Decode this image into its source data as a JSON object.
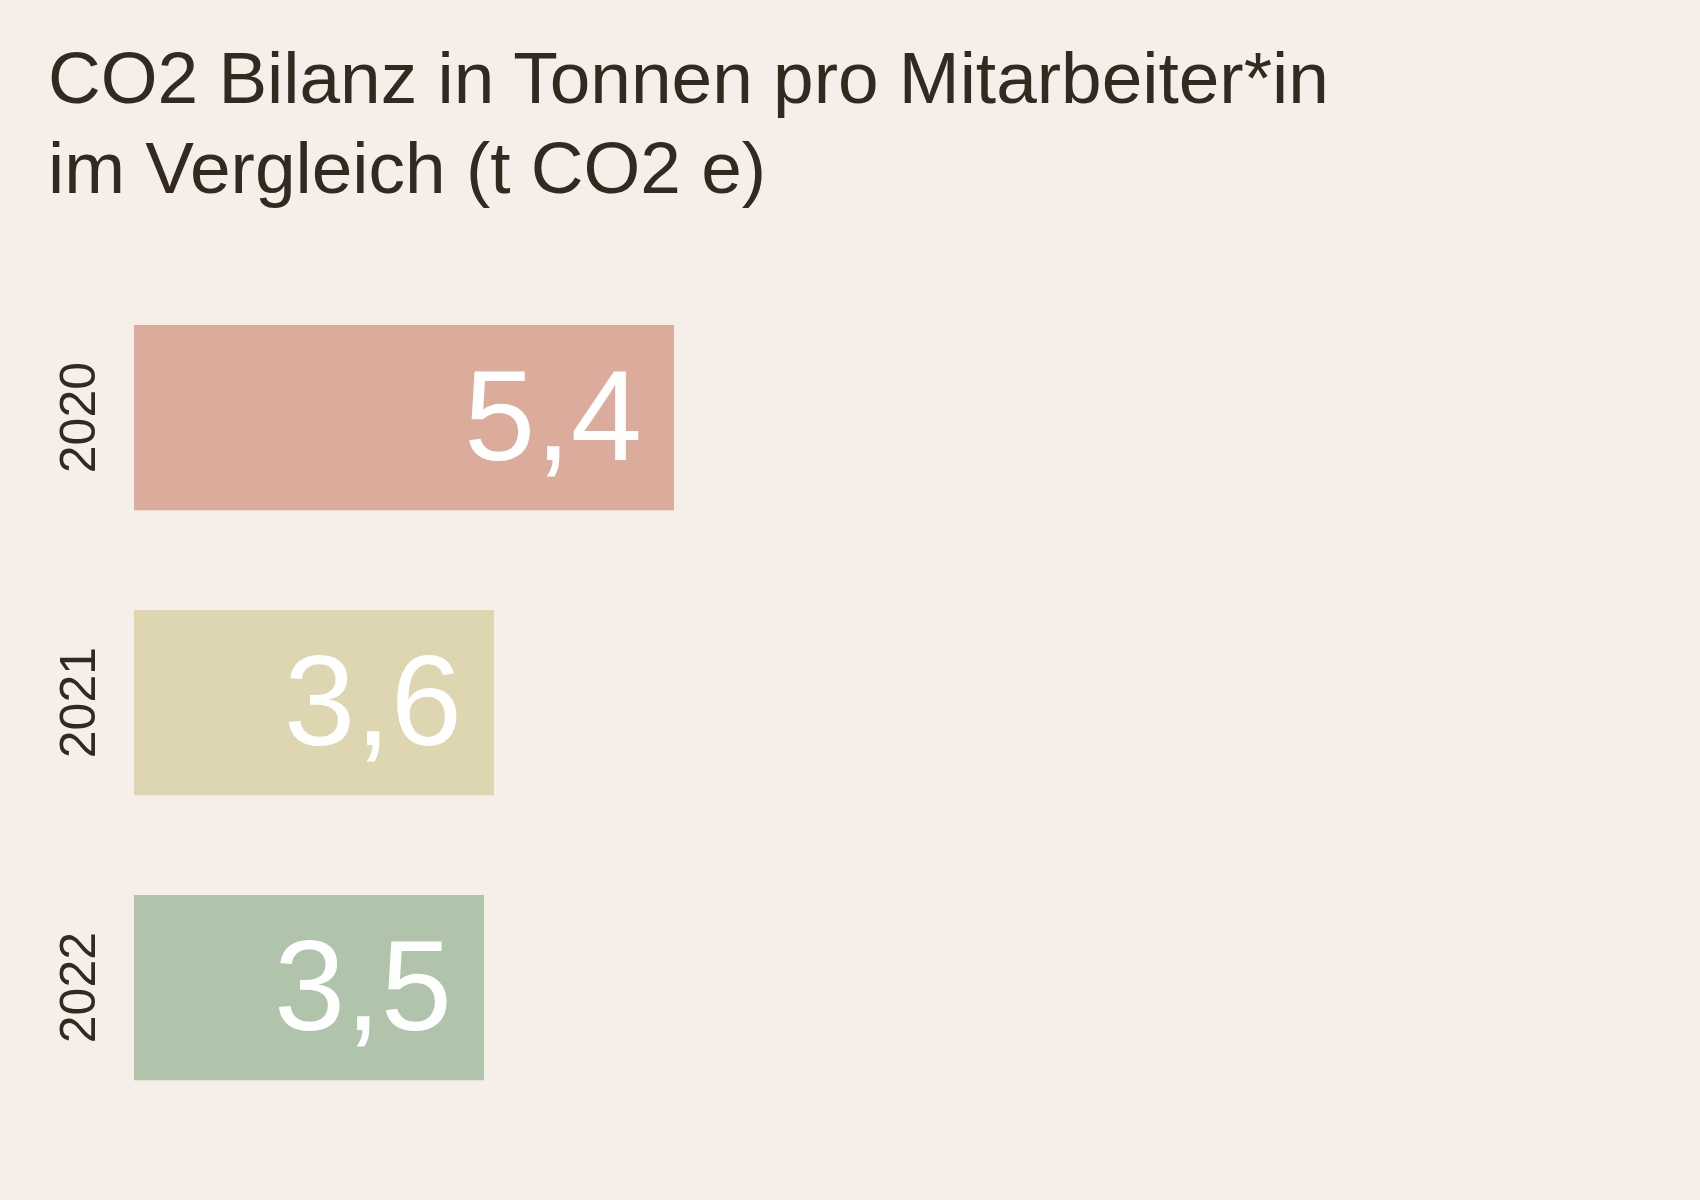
{
  "chart_data": {
    "type": "bar",
    "orientation": "horizontal",
    "title": [
      "CO2 Bilanz in Tonnen pro Mitarbeiter*in",
      "im Vergleich (t CO2 e)"
    ],
    "categories": [
      "2020",
      "2021",
      "2022"
    ],
    "values": [
      5.4,
      3.6,
      3.5
    ],
    "value_labels": [
      "5,4",
      "3,6",
      "3,5"
    ],
    "colors": [
      "#dbab9c",
      "#ded5b1",
      "#b0c3ab"
    ]
  }
}
